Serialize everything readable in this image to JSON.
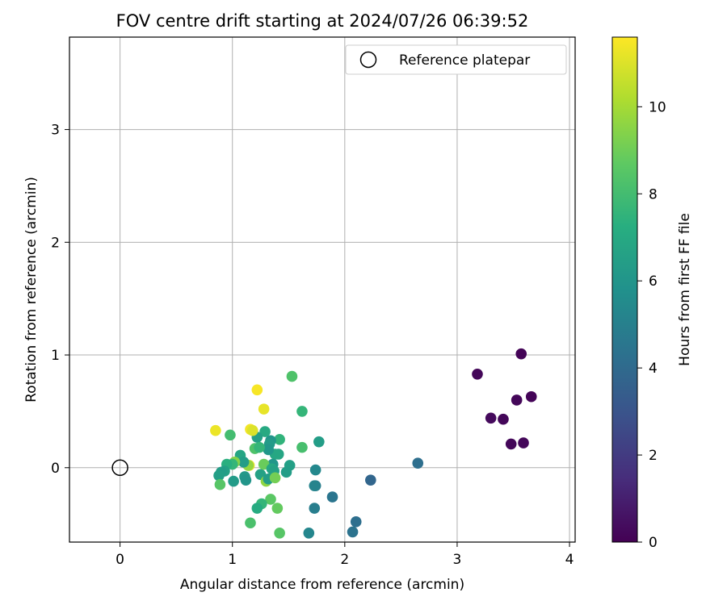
{
  "chart_data": {
    "type": "scatter",
    "title": "FOV centre drift starting at 2024/07/26 06:39:52",
    "xlabel": "Angular distance from reference (arcmin)",
    "ylabel": "Rotation from reference (arcmin)",
    "xlim": [
      -0.45,
      4.05
    ],
    "ylim": [
      -0.66,
      3.82
    ],
    "xticks": [
      0,
      1,
      2,
      3,
      4
    ],
    "yticks": [
      0,
      1,
      2,
      3
    ],
    "grid": true,
    "legend": {
      "position": "top-right",
      "entries": [
        {
          "label": "Reference platepar",
          "marker": "open-circle"
        }
      ]
    },
    "reference": {
      "x": 0,
      "y": 0
    },
    "colorbar": {
      "label": "Hours from first FF file",
      "colormap": "viridis",
      "range": [
        0,
        11.6
      ],
      "ticks": [
        0,
        2,
        4,
        6,
        8,
        10
      ]
    },
    "points": [
      {
        "x": 3.57,
        "y": 1.01,
        "h": 0.1
      },
      {
        "x": 3.18,
        "y": 0.83,
        "h": 0.2
      },
      {
        "x": 3.66,
        "y": 0.63,
        "h": 0.1
      },
      {
        "x": 3.53,
        "y": 0.6,
        "h": 0.2
      },
      {
        "x": 3.3,
        "y": 0.44,
        "h": 0.3
      },
      {
        "x": 3.41,
        "y": 0.43,
        "h": 0.2
      },
      {
        "x": 3.48,
        "y": 0.21,
        "h": 0.2
      },
      {
        "x": 3.59,
        "y": 0.22,
        "h": 0.2
      },
      {
        "x": 2.65,
        "y": 0.04,
        "h": 4.2
      },
      {
        "x": 2.23,
        "y": -0.11,
        "h": 3.8
      },
      {
        "x": 2.1,
        "y": -0.48,
        "h": 4.2
      },
      {
        "x": 2.07,
        "y": -0.57,
        "h": 4.4
      },
      {
        "x": 1.89,
        "y": -0.26,
        "h": 4.5
      },
      {
        "x": 1.73,
        "y": -0.36,
        "h": 4.9
      },
      {
        "x": 1.74,
        "y": -0.16,
        "h": 4.9
      },
      {
        "x": 1.73,
        "y": -0.16,
        "h": 5.2
      },
      {
        "x": 1.74,
        "y": -0.02,
        "h": 5.4
      },
      {
        "x": 1.68,
        "y": -0.58,
        "h": 5.3
      },
      {
        "x": 1.77,
        "y": 0.23,
        "h": 6.4
      },
      {
        "x": 1.53,
        "y": 0.81,
        "h": 8.3
      },
      {
        "x": 1.62,
        "y": 0.5,
        "h": 7.6
      },
      {
        "x": 1.62,
        "y": 0.18,
        "h": 8.1
      },
      {
        "x": 1.51,
        "y": 0.02,
        "h": 6.5
      },
      {
        "x": 1.48,
        "y": -0.04,
        "h": 6.4
      },
      {
        "x": 1.42,
        "y": 0.25,
        "h": 7.5
      },
      {
        "x": 1.41,
        "y": 0.12,
        "h": 6.8
      },
      {
        "x": 1.38,
        "y": 0.12,
        "h": 6.9
      },
      {
        "x": 1.36,
        "y": 0.03,
        "h": 6.1
      },
      {
        "x": 1.34,
        "y": 0.24,
        "h": 6.0
      },
      {
        "x": 1.33,
        "y": 0.21,
        "h": 6.3
      },
      {
        "x": 1.32,
        "y": 0.16,
        "h": 6.1
      },
      {
        "x": 1.29,
        "y": 0.32,
        "h": 7.0
      },
      {
        "x": 1.22,
        "y": 0.27,
        "h": 6.5
      },
      {
        "x": 1.2,
        "y": 0.17,
        "h": 8.3
      },
      {
        "x": 1.24,
        "y": 0.18,
        "h": 7.6
      },
      {
        "x": 1.28,
        "y": 0.52,
        "h": 11.2
      },
      {
        "x": 1.22,
        "y": 0.69,
        "h": 11.5
      },
      {
        "x": 1.16,
        "y": 0.34,
        "h": 11.4
      },
      {
        "x": 1.18,
        "y": 0.33,
        "h": 11.0
      },
      {
        "x": 0.85,
        "y": 0.33,
        "h": 11.3
      },
      {
        "x": 0.98,
        "y": 0.29,
        "h": 8.0
      },
      {
        "x": 1.15,
        "y": 0.02,
        "h": 11.1
      },
      {
        "x": 1.14,
        "y": 0.02,
        "h": 9.7
      },
      {
        "x": 1.07,
        "y": 0.11,
        "h": 6.8
      },
      {
        "x": 1.1,
        "y": 0.05,
        "h": 6.4
      },
      {
        "x": 1.02,
        "y": 0.05,
        "h": 9.4
      },
      {
        "x": 1.0,
        "y": 0.03,
        "h": 7.6
      },
      {
        "x": 0.95,
        "y": 0.03,
        "h": 7.3
      },
      {
        "x": 0.93,
        "y": -0.03,
        "h": 6.6
      },
      {
        "x": 0.9,
        "y": -0.04,
        "h": 6.4
      },
      {
        "x": 0.88,
        "y": -0.07,
        "h": 6.5
      },
      {
        "x": 0.89,
        "y": -0.15,
        "h": 8.5
      },
      {
        "x": 1.01,
        "y": -0.12,
        "h": 6.3
      },
      {
        "x": 1.11,
        "y": -0.08,
        "h": 6.2
      },
      {
        "x": 1.12,
        "y": -0.11,
        "h": 6.0
      },
      {
        "x": 1.25,
        "y": -0.06,
        "h": 6.6
      },
      {
        "x": 1.28,
        "y": 0.03,
        "h": 8.9
      },
      {
        "x": 1.3,
        "y": -0.12,
        "h": 9.6
      },
      {
        "x": 1.32,
        "y": -0.1,
        "h": 6.4
      },
      {
        "x": 1.35,
        "y": -0.01,
        "h": 6.9
      },
      {
        "x": 1.37,
        "y": -0.03,
        "h": 6.6
      },
      {
        "x": 1.38,
        "y": -0.09,
        "h": 9.1
      },
      {
        "x": 1.34,
        "y": -0.28,
        "h": 8.6
      },
      {
        "x": 1.4,
        "y": -0.36,
        "h": 8.8
      },
      {
        "x": 1.26,
        "y": -0.32,
        "h": 7.6
      },
      {
        "x": 1.22,
        "y": -0.36,
        "h": 7.1
      },
      {
        "x": 1.16,
        "y": -0.49,
        "h": 8.2
      },
      {
        "x": 1.42,
        "y": -0.58,
        "h": 8.5
      }
    ]
  }
}
